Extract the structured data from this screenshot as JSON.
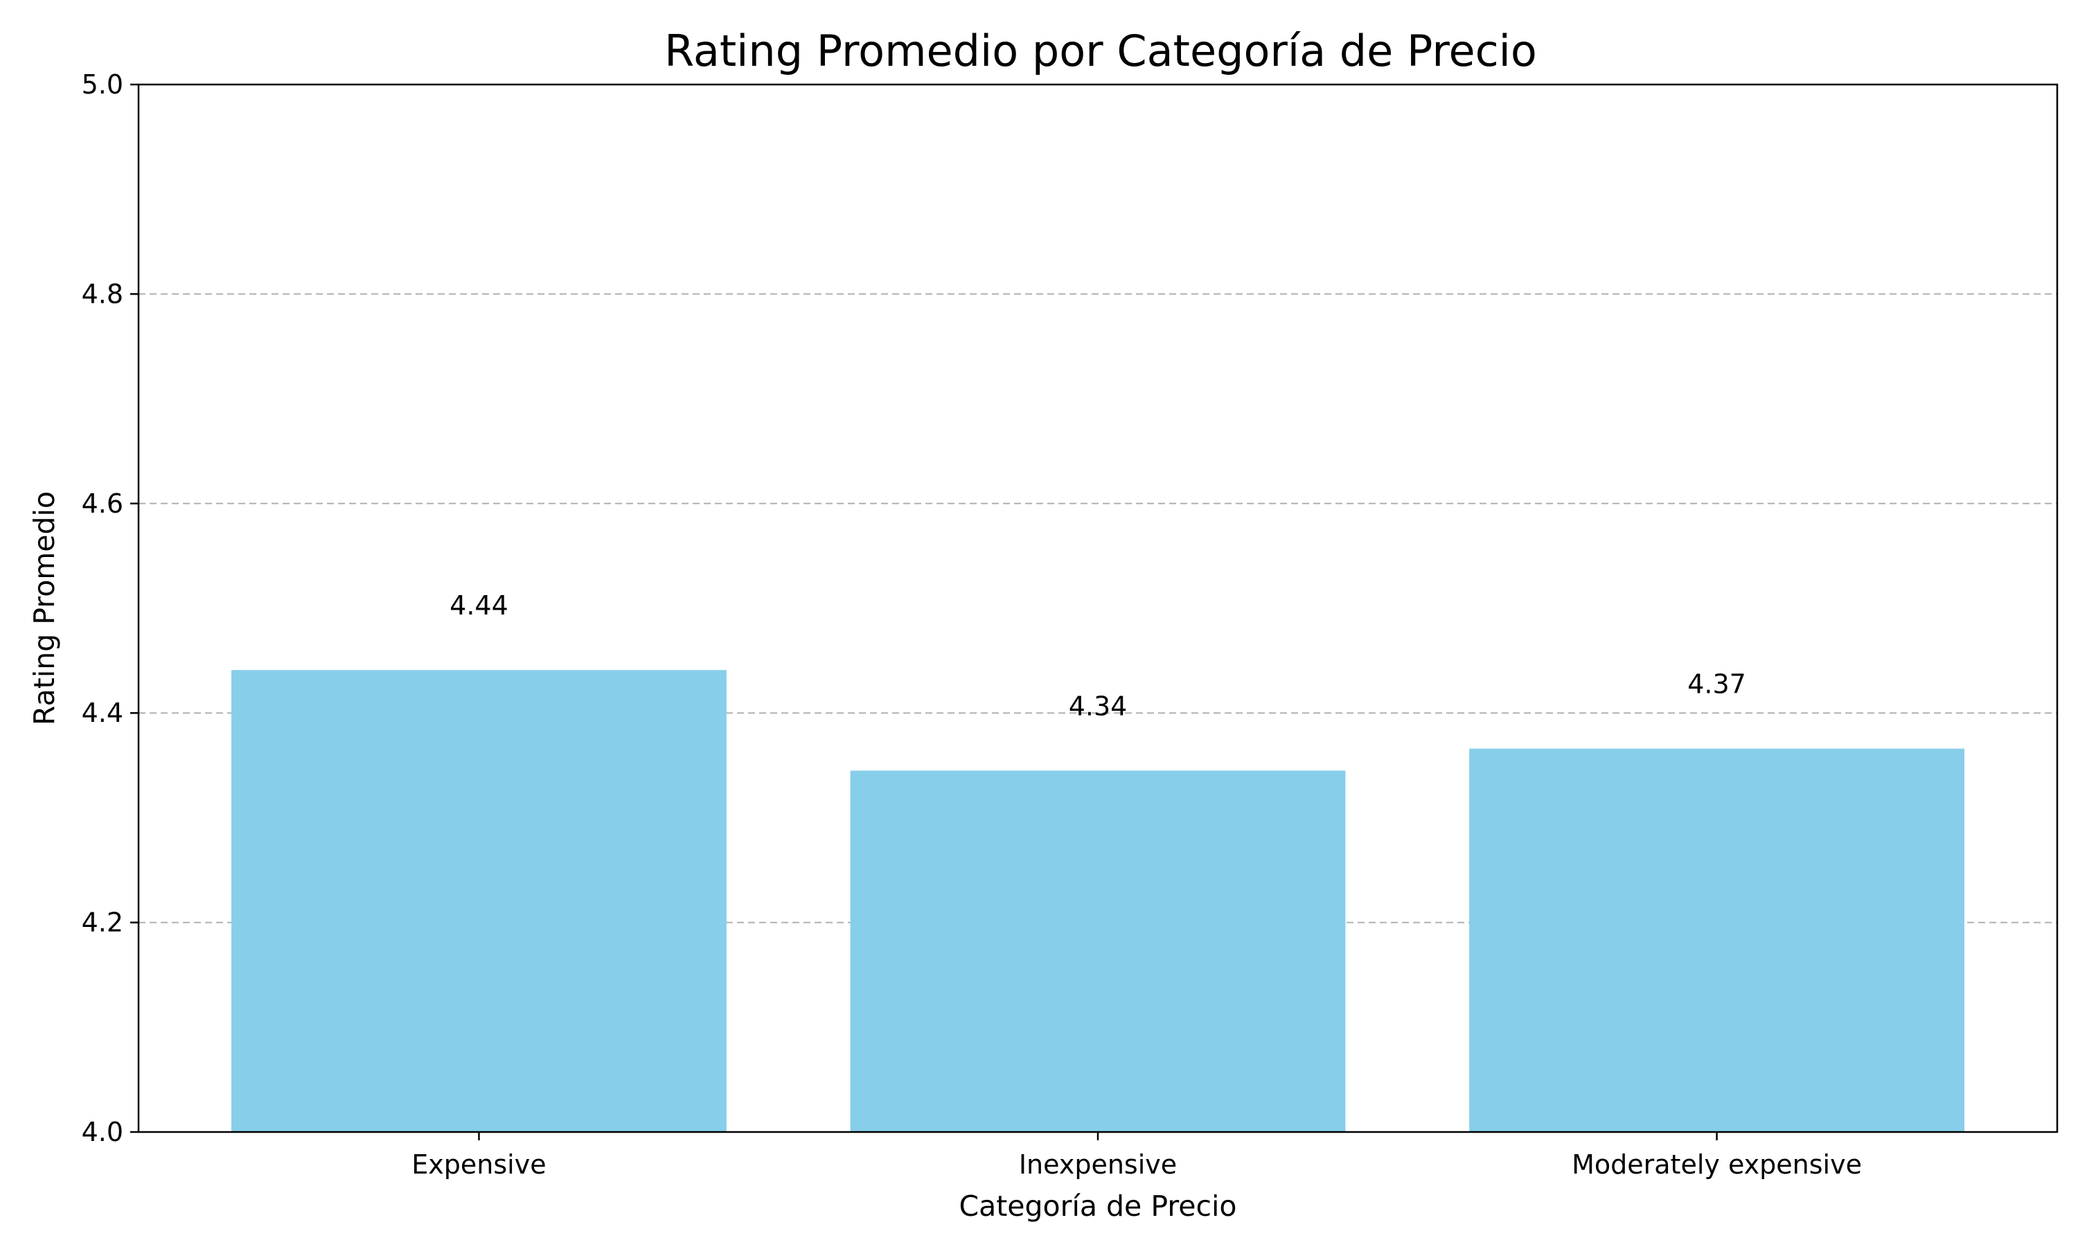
{
  "chart_data": {
    "type": "bar",
    "title": "Rating Promedio por Categoría de Precio",
    "xlabel": "Categoría de Precio",
    "ylabel": "Rating Promedio",
    "categories": [
      "Expensive",
      "Inexpensive",
      "Moderately expensive"
    ],
    "values": [
      4.441,
      4.345,
      4.366
    ],
    "value_labels": [
      "4.44",
      "4.34",
      "4.37"
    ],
    "ylim": [
      4.0,
      5.0
    ],
    "yticks": [
      4.0,
      4.2,
      4.4,
      4.6,
      4.8,
      5.0
    ],
    "ytick_labels": [
      "4.0",
      "4.2",
      "4.4",
      "4.6",
      "4.8",
      "5.0"
    ],
    "grid": "y-dashed",
    "legend": "none",
    "colors": {
      "bar": "#87CEEB",
      "grid": "#b0b0b0",
      "axis": "#000000"
    }
  }
}
